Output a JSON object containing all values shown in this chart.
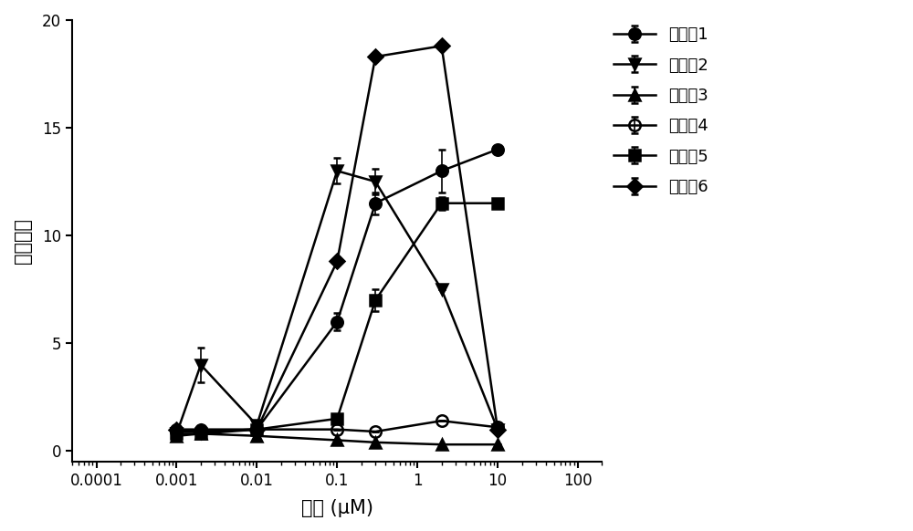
{
  "title": "",
  "xlabel": "浓度 (μM)",
  "ylabel": "倍数变化",
  "xlim": [
    5e-05,
    200
  ],
  "ylim": [
    -0.5,
    20
  ],
  "yticks": [
    0,
    5,
    10,
    15,
    20
  ],
  "xtick_vals": [
    0.0001,
    0.001,
    0.01,
    0.1,
    1,
    10,
    100
  ],
  "xtick_labels": [
    "0.0001",
    "0.001",
    "0.01",
    "0.1",
    "1",
    "10",
    "100"
  ],
  "background_color": "#ffffff",
  "series": [
    {
      "label": "化合照1",
      "x": [
        0.001,
        0.002,
        0.01,
        0.1,
        0.3,
        2,
        10
      ],
      "y": [
        1.0,
        1.0,
        1.0,
        6.0,
        11.5,
        13.0,
        14.0
      ],
      "yerr": [
        0.0,
        0.0,
        0.0,
        0.4,
        0.5,
        1.0,
        0.0
      ],
      "marker": "o",
      "fillstyle": "full",
      "color": "#000000",
      "linewidth": 1.8,
      "markersize": 9
    },
    {
      "label": "化合照2",
      "x": [
        0.001,
        0.002,
        0.01,
        0.1,
        0.3,
        2,
        10
      ],
      "y": [
        0.8,
        4.0,
        1.2,
        13.0,
        12.5,
        7.5,
        1.0
      ],
      "yerr": [
        0.0,
        0.8,
        0.0,
        0.6,
        0.6,
        0.0,
        0.0
      ],
      "marker": "v",
      "fillstyle": "full",
      "color": "#000000",
      "linewidth": 1.8,
      "markersize": 9
    },
    {
      "label": "化合照3",
      "x": [
        0.001,
        0.002,
        0.01,
        0.1,
        0.3,
        2,
        10
      ],
      "y": [
        0.7,
        0.8,
        0.7,
        0.5,
        0.4,
        0.3,
        0.3
      ],
      "yerr": [
        0.0,
        0.0,
        0.0,
        0.0,
        0.0,
        0.0,
        0.0
      ],
      "marker": "^",
      "fillstyle": "full",
      "color": "#000000",
      "linewidth": 1.8,
      "markersize": 9
    },
    {
      "label": "化合照4",
      "x": [
        0.001,
        0.002,
        0.01,
        0.1,
        0.3,
        2,
        10
      ],
      "y": [
        0.9,
        0.9,
        1.0,
        1.0,
        0.9,
        1.4,
        1.1
      ],
      "yerr": [
        0.0,
        0.0,
        0.0,
        0.0,
        0.0,
        0.0,
        0.0
      ],
      "marker": "o",
      "fillstyle": "none",
      "color": "#000000",
      "linewidth": 1.8,
      "markersize": 9
    },
    {
      "label": "化合照5",
      "x": [
        0.001,
        0.002,
        0.01,
        0.1,
        0.3,
        2,
        10
      ],
      "y": [
        0.8,
        0.8,
        1.0,
        1.5,
        7.0,
        11.5,
        11.5
      ],
      "yerr": [
        0.0,
        0.0,
        0.0,
        0.0,
        0.5,
        0.3,
        0.0
      ],
      "marker": "s",
      "fillstyle": "full",
      "color": "#000000",
      "linewidth": 1.8,
      "markersize": 9
    },
    {
      "label": "化合照6",
      "x": [
        0.001,
        0.002,
        0.01,
        0.1,
        0.3,
        2,
        10
      ],
      "y": [
        1.0,
        0.9,
        1.0,
        8.8,
        18.3,
        18.8,
        1.0
      ],
      "yerr": [
        0.0,
        0.0,
        0.0,
        0.0,
        0.0,
        0.0,
        0.0
      ],
      "marker": "D",
      "fillstyle": "full",
      "color": "#000000",
      "linewidth": 1.8,
      "markersize": 8
    }
  ]
}
